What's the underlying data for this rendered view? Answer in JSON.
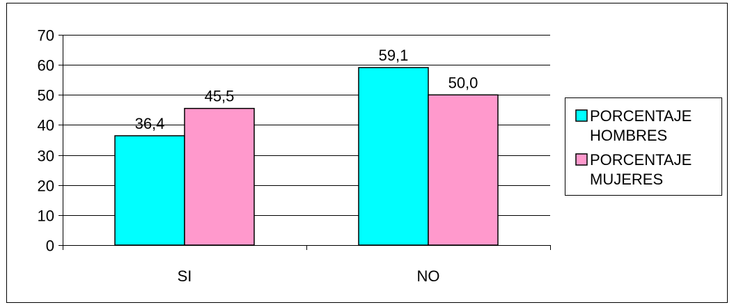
{
  "chart_data": {
    "type": "bar",
    "categories": [
      "SI",
      "NO"
    ],
    "series": [
      {
        "name": "PORCENTAJE HOMBRES",
        "values": [
          36.4,
          59.1
        ],
        "labels": [
          "36,4",
          "59,1"
        ],
        "color": "#00FFFF"
      },
      {
        "name": "PORCENTAJE MUJERES",
        "values": [
          45.5,
          50.0
        ],
        "labels": [
          "45,5",
          "50,0"
        ],
        "color": "#FF99CC"
      }
    ],
    "legend": {
      "position": "right",
      "entries": [
        {
          "lines": [
            "PORCENTAJE",
            "HOMBRES"
          ]
        },
        {
          "lines": [
            "PORCENTAJE",
            "MUJERES"
          ]
        }
      ]
    },
    "yticks": [
      "0",
      "10",
      "20",
      "30",
      "40",
      "50",
      "60",
      "70"
    ],
    "ylim": [
      0,
      70
    ],
    "grid": true,
    "title": "",
    "xlabel": "",
    "ylabel": ""
  }
}
